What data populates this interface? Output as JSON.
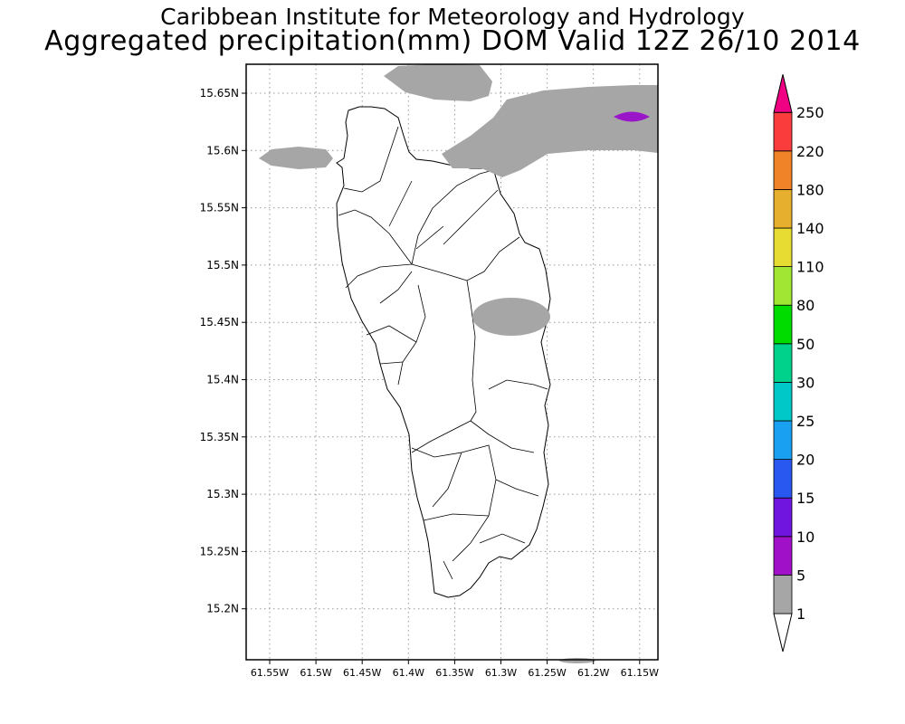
{
  "title": {
    "line1": "Caribbean Institute for Meteorology and Hydrology",
    "line2": "Aggregated precipitation(mm) DOM Valid 12Z 26/10 2014"
  },
  "map": {
    "region": "Dominica",
    "lon_range": [
      -61.57,
      -61.13
    ],
    "lat_range": [
      15.155,
      15.675
    ],
    "x_ticks": [
      "61.55W",
      "61.5W",
      "61.45W",
      "61.4W",
      "61.35W",
      "61.3W",
      "61.25W",
      "61.2W",
      "61.15W"
    ],
    "y_ticks": [
      "15.65N",
      "15.6N",
      "15.55N",
      "15.5N",
      "15.45N",
      "15.4N",
      "15.35N",
      "15.3N",
      "15.25N",
      "15.2N"
    ],
    "grid": "dotted",
    "land_fill": "#ffffff",
    "outline_color": "#000000"
  },
  "precip_areas": [
    {
      "category": "1-5",
      "color": "#a6a6a6",
      "location": "north coast band"
    },
    {
      "category": "1-5",
      "color": "#a6a6a6",
      "location": "northwest offshore"
    },
    {
      "category": "1-5",
      "color": "#a6a6a6",
      "location": "north offshore"
    },
    {
      "category": "1-5",
      "color": "#a6a6a6",
      "location": "east coast"
    },
    {
      "category": "5-10",
      "color": "#9a14c8",
      "location": "northeast offshore"
    }
  ],
  "colorbar": {
    "labels": [
      "1",
      "5",
      "10",
      "15",
      "20",
      "25",
      "30",
      "50",
      "80",
      "110",
      "140",
      "180",
      "220",
      "250"
    ],
    "colors": [
      "#a6a6a6",
      "#a010c8",
      "#7014e0",
      "#2858f0",
      "#1aa0f0",
      "#00c8c8",
      "#00d28c",
      "#00dc00",
      "#a0e632",
      "#e6dc32",
      "#e6af2d",
      "#f08228",
      "#fa3c3c",
      "#f00082"
    ],
    "under_color": "#ffffff",
    "over_color": "#f00082"
  }
}
